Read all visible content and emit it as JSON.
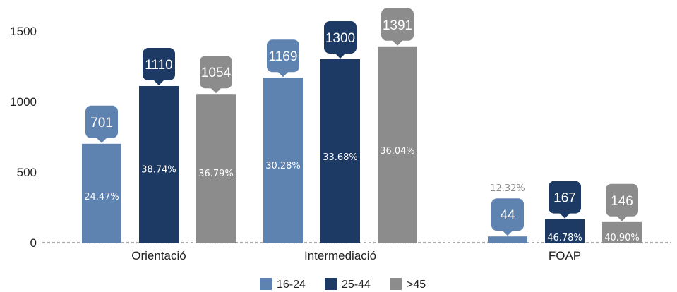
{
  "chart_data": {
    "type": "bar",
    "categories": [
      "Orientació",
      "Intermediació",
      "FOAP"
    ],
    "ylim": [
      0,
      1500
    ],
    "yticks": [
      0,
      500,
      1000,
      1500
    ],
    "grid": false,
    "legend_position": "bottom",
    "series": [
      {
        "name": "16-24",
        "color": "#5f83b1",
        "values": [
          701,
          1169,
          44
        ],
        "percent_labels": [
          "24.47%",
          "30.28%",
          "12.32%"
        ]
      },
      {
        "name": "25-44",
        "color": "#1c3a64",
        "values": [
          1110,
          1300,
          167
        ],
        "percent_labels": [
          "38.74%",
          "33.68%",
          "46.78%"
        ]
      },
      {
        "name": ">45",
        "color": "#8c8c8c",
        "values": [
          1054,
          1391,
          146
        ],
        "percent_labels": [
          "36.79%",
          "36.04%",
          "40.90%"
        ]
      }
    ]
  }
}
